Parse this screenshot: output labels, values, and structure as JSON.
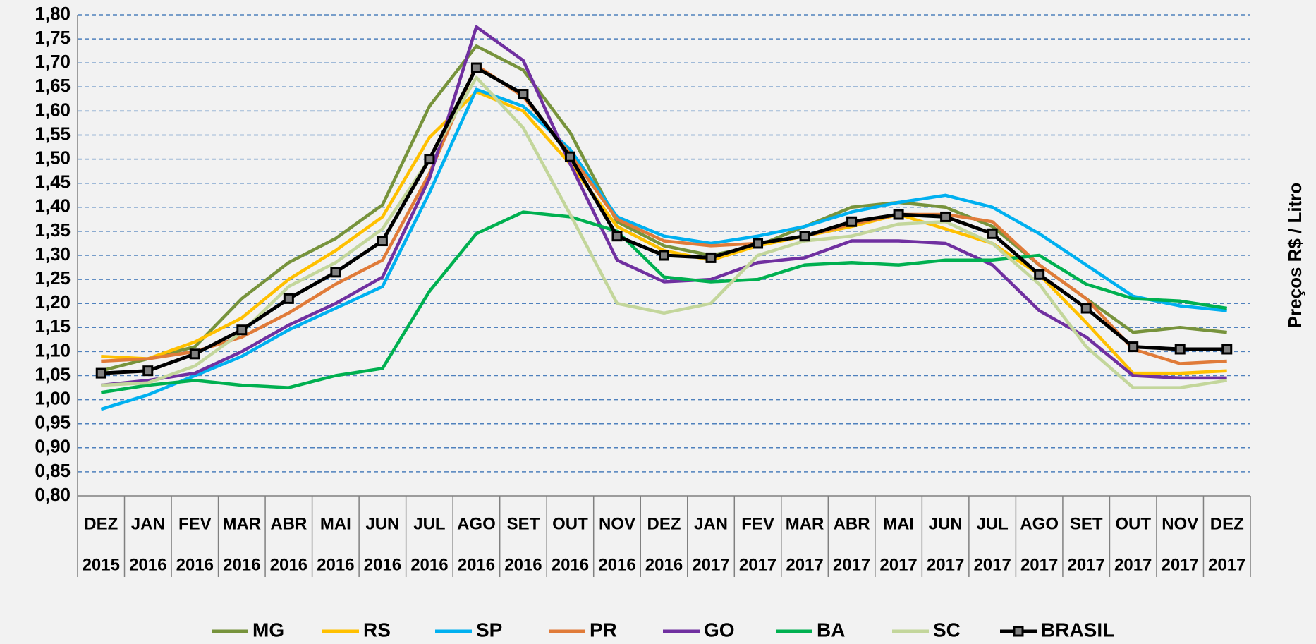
{
  "chart_data": {
    "type": "line",
    "y_label": "Preços R$ / Litro",
    "categories": [
      "DEZ",
      "JAN",
      "FEV",
      "MAR",
      "ABR",
      "MAI",
      "JUN",
      "JUL",
      "AGO",
      "SET",
      "OUT",
      "NOV",
      "DEZ",
      "JAN",
      "FEV",
      "MAR",
      "ABR",
      "MAI",
      "JUN",
      "JUL",
      "AGO",
      "SET",
      "OUT",
      "NOV",
      "DEZ"
    ],
    "years": [
      "2015",
      "2016",
      "2016",
      "2016",
      "2016",
      "2016",
      "2016",
      "2016",
      "2016",
      "2016",
      "2016",
      "2016",
      "2016",
      "2017",
      "2017",
      "2017",
      "2017",
      "2017",
      "2017",
      "2017",
      "2017",
      "2017",
      "2017",
      "2017",
      "2017"
    ],
    "ylim": [
      0.8,
      1.8
    ],
    "yticks": [
      {
        "value": 0.8,
        "label": "0,80"
      },
      {
        "value": 0.85,
        "label": "0,85"
      },
      {
        "value": 0.9,
        "label": "0,90"
      },
      {
        "value": 0.95,
        "label": "0,95"
      },
      {
        "value": 1.0,
        "label": "1,00"
      },
      {
        "value": 1.05,
        "label": "1,05"
      },
      {
        "value": 1.1,
        "label": "1,10"
      },
      {
        "value": 1.15,
        "label": "1,15"
      },
      {
        "value": 1.2,
        "label": "1,20"
      },
      {
        "value": 1.25,
        "label": "1,25"
      },
      {
        "value": 1.3,
        "label": "1,30"
      },
      {
        "value": 1.35,
        "label": "1,35"
      },
      {
        "value": 1.4,
        "label": "1,40"
      },
      {
        "value": 1.45,
        "label": "1,45"
      },
      {
        "value": 1.5,
        "label": "1,50"
      },
      {
        "value": 1.55,
        "label": "1,55"
      },
      {
        "value": 1.6,
        "label": "1,60"
      },
      {
        "value": 1.65,
        "label": "1,65"
      },
      {
        "value": 1.7,
        "label": "1,70"
      },
      {
        "value": 1.75,
        "label": "1,75"
      },
      {
        "value": 1.8,
        "label": "1,80"
      }
    ],
    "grid": true,
    "legend": "bottom",
    "series": [
      {
        "name": "MG",
        "color": "#77933c",
        "values": [
          1.06,
          1.085,
          1.11,
          1.21,
          1.285,
          1.335,
          1.405,
          1.61,
          1.735,
          1.685,
          1.555,
          1.37,
          1.32,
          1.3,
          1.32,
          1.36,
          1.4,
          1.41,
          1.4,
          1.36,
          1.28,
          1.21,
          1.14,
          1.15,
          1.14
        ]
      },
      {
        "name": "RS",
        "color": "#ffc000",
        "values": [
          1.09,
          1.085,
          1.12,
          1.17,
          1.25,
          1.31,
          1.38,
          1.545,
          1.64,
          1.6,
          1.49,
          1.36,
          1.31,
          1.29,
          1.32,
          1.34,
          1.36,
          1.385,
          1.355,
          1.325,
          1.26,
          1.16,
          1.055,
          1.055,
          1.06
        ]
      },
      {
        "name": "SP",
        "color": "#00b0f0",
        "values": [
          0.98,
          1.01,
          1.05,
          1.09,
          1.145,
          1.19,
          1.235,
          1.43,
          1.645,
          1.61,
          1.52,
          1.38,
          1.34,
          1.325,
          1.34,
          1.36,
          1.39,
          1.41,
          1.425,
          1.4,
          1.345,
          1.28,
          1.215,
          1.195,
          1.185
        ]
      },
      {
        "name": "PR",
        "color": "#e07b39",
        "values": [
          1.08,
          1.085,
          1.1,
          1.13,
          1.18,
          1.24,
          1.29,
          1.47,
          1.695,
          1.63,
          1.51,
          1.375,
          1.33,
          1.32,
          1.325,
          1.34,
          1.365,
          1.385,
          1.385,
          1.37,
          1.28,
          1.21,
          1.105,
          1.075,
          1.08
        ]
      },
      {
        "name": "GO",
        "color": "#7030a0",
        "values": [
          1.03,
          1.04,
          1.055,
          1.1,
          1.155,
          1.2,
          1.255,
          1.46,
          1.775,
          1.705,
          1.49,
          1.29,
          1.245,
          1.25,
          1.285,
          1.295,
          1.33,
          1.33,
          1.325,
          1.28,
          1.185,
          1.13,
          1.05,
          1.045,
          1.045
        ]
      },
      {
        "name": "BA",
        "color": "#00b050",
        "values": [
          1.015,
          1.03,
          1.04,
          1.03,
          1.025,
          1.05,
          1.065,
          1.225,
          1.345,
          1.39,
          1.38,
          1.35,
          1.255,
          1.245,
          1.25,
          1.28,
          1.285,
          1.28,
          1.29,
          1.29,
          1.3,
          1.24,
          1.21,
          1.205,
          1.19
        ]
      },
      {
        "name": "SC",
        "color": "#c3d69b",
        "values": [
          1.03,
          1.035,
          1.07,
          1.14,
          1.235,
          1.285,
          1.355,
          1.5,
          1.67,
          1.565,
          1.385,
          1.2,
          1.18,
          1.2,
          1.3,
          1.33,
          1.34,
          1.365,
          1.37,
          1.325,
          1.24,
          1.11,
          1.025,
          1.025,
          1.04
        ]
      },
      {
        "name": "BRASIL",
        "color": "#000000",
        "marker": "square",
        "values": [
          1.055,
          1.06,
          1.095,
          1.145,
          1.21,
          1.265,
          1.33,
          1.5,
          1.69,
          1.635,
          1.505,
          1.34,
          1.3,
          1.295,
          1.325,
          1.34,
          1.37,
          1.385,
          1.38,
          1.345,
          1.26,
          1.19,
          1.11,
          1.105,
          1.105
        ]
      }
    ]
  }
}
